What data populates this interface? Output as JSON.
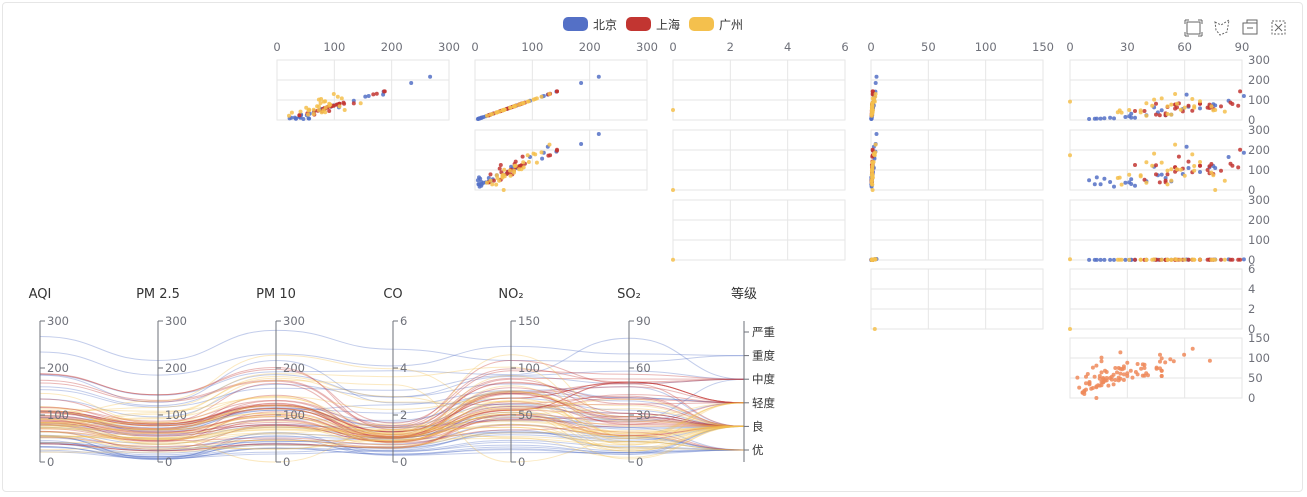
{
  "legend": {
    "items": [
      {
        "label": "北京",
        "color": "#5470c6"
      },
      {
        "label": "上海",
        "color": "#c23531"
      },
      {
        "label": "广州",
        "color": "#f4c04d"
      }
    ]
  },
  "toolbox": {
    "icons": [
      "rect-select-icon",
      "polygon-select-icon",
      "keep-selection-icon",
      "clear-selection-icon"
    ]
  },
  "colors": {
    "beijing": "#5470c6",
    "shanghai": "#c23531",
    "guangzhou": "#f4c04d",
    "extra": "#ee8a5b",
    "grid": "#e6e6e6",
    "axis": "#6e7079"
  },
  "chart_data": [
    {
      "type": "scatter",
      "title": "",
      "matrix_dimensions": [
        "AQI",
        "PM 2.5",
        "PM 10",
        "CO",
        "NO2",
        "SO2"
      ],
      "x_axes": [
        {
          "dimension": "AQI",
          "range": [
            0,
            300
          ],
          "ticks": [
            "0",
            "100",
            "200",
            "300"
          ]
        },
        {
          "dimension": "PM 2.5",
          "range": [
            0,
            300
          ],
          "ticks": [
            "0",
            "100",
            "200",
            "300"
          ]
        },
        {
          "dimension": "PM 10",
          "range": [
            0,
            6
          ],
          "ticks": [
            "0",
            "2",
            "4",
            "6"
          ]
        },
        {
          "dimension": "CO",
          "range": [
            0,
            150
          ],
          "ticks": [
            "0",
            "50",
            "100",
            "150"
          ]
        },
        {
          "dimension": "NO2",
          "range": [
            0,
            90
          ],
          "ticks": [
            "0",
            "30",
            "60",
            "90"
          ]
        }
      ],
      "y_axes": [
        {
          "dimension": "PM 2.5",
          "range": [
            0,
            300
          ],
          "ticks": [
            "0",
            "100",
            "200",
            "300"
          ]
        },
        {
          "dimension": "PM 10",
          "range": [
            0,
            300
          ],
          "ticks": [
            "0",
            "100",
            "200",
            "300"
          ]
        },
        {
          "dimension": "CO",
          "range": [
            0,
            300
          ],
          "ticks": [
            "0",
            "100",
            "200",
            "300"
          ]
        },
        {
          "dimension": "NO2",
          "range": [
            0,
            6
          ],
          "ticks": [
            "0",
            "2",
            "4",
            "6"
          ]
        },
        {
          "dimension": "SO2",
          "range": [
            0,
            150
          ],
          "ticks": [
            "0",
            "50",
            "100",
            "150"
          ]
        }
      ],
      "series": [
        {
          "name": "北京",
          "color": "#5470c6",
          "records": [
            [
              55,
              9,
              56,
              0.46,
              18,
              6
            ],
            [
              25,
              11,
              21,
              0.65,
              34,
              9
            ],
            [
              56,
              7,
              63,
              0.3,
              14,
              5
            ],
            [
              33,
              7,
              29,
              0.33,
              16,
              6
            ],
            [
              42,
              24,
              44,
              0.76,
              40,
              16
            ],
            [
              82,
              58,
              90,
              1.77,
              68,
              33
            ],
            [
              74,
              49,
              77,
              1.46,
              48,
              27
            ],
            [
              78,
              55,
              80,
              1.29,
              59,
              29
            ],
            [
              267,
              216,
              280,
              4.8,
              108,
              64
            ],
            [
              185,
              127,
              216,
              2.52,
              61,
              27
            ],
            [
              39,
              19,
              38,
              0.57,
              31,
              15
            ],
            [
              41,
              11,
              40,
              0.43,
              21,
              7
            ],
            [
              64,
              38,
              74,
              1.04,
              46,
              22
            ],
            [
              108,
              79,
              120,
              1.7,
              75,
              41
            ],
            [
              108,
              63,
              116,
              1.48,
              44,
              26
            ],
            [
              33,
              6,
              29,
              0.34,
              13,
              5
            ],
            [
              94,
              66,
              110,
              1.54,
              62,
              31
            ],
            [
              186,
              142,
              192,
              3.88,
              93,
              79
            ],
            [
              57,
              31,
              54,
              0.96,
              32,
              14
            ],
            [
              22,
              8,
              17,
              0.48,
              23,
              10
            ],
            [
              39,
              15,
              36,
              0.61,
              29,
              13
            ],
            [
              94,
              69,
              114,
              2.08,
              73,
              39
            ],
            [
              99,
              73,
              110,
              2.43,
              76,
              48
            ],
            [
              31,
              12,
              30,
              0.5,
              32,
              16
            ],
            [
              42,
              27,
              43,
              1,
              53,
              22
            ],
            [
              154,
              117,
              157,
              3.05,
              92,
              58
            ],
            [
              234,
              185,
              230,
              4.09,
              123,
              69
            ],
            [
              160,
              120,
              186,
              2.77,
              91,
              50
            ],
            [
              134,
              96,
              165,
              2.76,
              83,
              41
            ],
            [
              52,
              24,
              60,
              1.03,
              50,
              21
            ],
            [
              46,
              5,
              49,
              0.28,
              10,
              6
            ]
          ]
        },
        {
          "name": "上海",
          "color": "#c23531",
          "records": [
            [
              91,
              45,
              125,
              0.82,
              34,
              23
            ],
            [
              65,
              27,
              78,
              0.86,
              45,
              29
            ],
            [
              83,
              60,
              84,
              1.09,
              73,
              27
            ],
            [
              109,
              81,
              121,
              1.28,
              68,
              51
            ],
            [
              106,
              77,
              114,
              1.07,
              55,
              51
            ],
            [
              109,
              81,
              121,
              1.28,
              68,
              51
            ],
            [
              106,
              77,
              114,
              1.07,
              55,
              51
            ],
            [
              89,
              65,
              78,
              0.86,
              51,
              26
            ],
            [
              53,
              33,
              47,
              0.64,
              50,
              17
            ],
            [
              80,
              55,
              80,
              1.01,
              75,
              24
            ],
            [
              117,
              81,
              124,
              1.03,
              45,
              24
            ],
            [
              99,
              71,
              142,
              1.1,
              62,
              42
            ],
            [
              95,
              69,
              130,
              1.28,
              74,
              50
            ],
            [
              116,
              87,
              131,
              1.47,
              84,
              40
            ],
            [
              108,
              80,
              121,
              1.3,
              85,
              37
            ],
            [
              134,
              83,
              167,
              1.16,
              57,
              43
            ],
            [
              79,
              43,
              107,
              1.05,
              59,
              37
            ],
            [
              71,
              46,
              89,
              0.86,
              64,
              25
            ],
            [
              97,
              71,
              113,
              1.17,
              88,
              31
            ],
            [
              84,
              57,
              91,
              0.85,
              55,
              31
            ],
            [
              87,
              63,
              101,
              0.9,
              56,
              41
            ],
            [
              104,
              77,
              119,
              1.09,
              73,
              48
            ],
            [
              87,
              62,
              100,
              1,
              72,
              28
            ],
            [
              168,
              128,
              172,
              1.49,
              97,
              56
            ],
            [
              65,
              45,
              51,
              0.74,
              39,
              17
            ],
            [
              39,
              24,
              38,
              0.61,
              47,
              17
            ],
            [
              39,
              24,
              39,
              0.59,
              50,
              19
            ],
            [
              93,
              68,
              96,
              1.05,
              79,
              29
            ],
            [
              188,
              143,
              197,
              1.66,
              99,
              51
            ],
            [
              174,
              131,
              174,
              1.55,
              108,
              50
            ],
            [
              187,
              143,
              201,
              1.39,
              89,
              53
            ]
          ]
        },
        {
          "name": "广州",
          "color": "#f4c04d",
          "records": [
            [
              26,
              37,
              27,
              1.163,
              27,
              13
            ],
            [
              85,
              62,
              71,
              1.195,
              60,
              8
            ],
            [
              78,
              38,
              74,
              1.363,
              37,
              7
            ],
            [
              21,
              21,
              36,
              0.634,
              40,
              9
            ],
            [
              41,
              42,
              46,
              0.915,
              81,
              13
            ],
            [
              56,
              52,
              69,
              1.067,
              92,
              16
            ],
            [
              64,
              30,
              28,
              0.924,
              51,
              2
            ],
            [
              55,
              48,
              74,
              1.236,
              75,
              26
            ],
            [
              76,
              85,
              113,
              1.237,
              114,
              27
            ],
            [
              91,
              81,
              104,
              1.041,
              56,
              40
            ],
            [
              84,
              39,
              60,
              0.964,
              25,
              11
            ],
            [
              64,
              51,
              101,
              0.862,
              58,
              23
            ],
            [
              70,
              69,
              120,
              1.198,
              65,
              36
            ],
            [
              77,
              105,
              178,
              2.549,
              64,
              16
            ],
            [
              109,
              68,
              87,
              0.996,
              74,
              29
            ],
            [
              73,
              68,
              97,
              0.905,
              51,
              34
            ],
            [
              54,
              27,
              47,
              0.592,
              53,
              12
            ],
            [
              51,
              61,
              97,
              0.811,
              65,
              19
            ],
            [
              91,
              71,
              121,
              1.374,
              43,
              18
            ],
            [
              73,
              102,
              182,
              2.787,
              44,
              19
            ],
            [
              73,
              50,
              76,
              0.717,
              31,
              20
            ],
            [
              84,
              94,
              140,
              2.238,
              68,
              18
            ],
            [
              93,
              77,
              104,
              1.165,
              53,
              7
            ],
            [
              99,
              130,
              227,
              3.97,
              55,
              15
            ],
            [
              146,
              84,
              139,
              1.094,
              40,
              17
            ],
            [
              113,
              108,
              137,
              1.481,
              48,
              15
            ],
            [
              81,
              48,
              62,
              1.619,
              26,
              3
            ],
            [
              56,
              48,
              68,
              1.336,
              37,
              9
            ],
            [
              82,
              92,
              174,
              3.29,
              0,
              13
            ],
            [
              106,
              116,
              188,
              3.628,
              101,
              16
            ],
            [
              118,
              50,
              0,
              1.383,
              76,
              11
            ]
          ]
        }
      ],
      "extra_panel": {
        "x_dimension": "NO2",
        "y_dimension": "SO2",
        "color": "#ee8a5b",
        "x_range": [
          0,
          90
        ],
        "y_range": [
          0,
          150
        ],
        "ticks": [
          "0",
          "50",
          "100",
          "150"
        ]
      }
    },
    {
      "type": "parallel",
      "title": "",
      "axes": [
        {
          "name": "AQI",
          "range": [
            0,
            300
          ],
          "ticks": [
            "0",
            "100",
            "200",
            "300"
          ]
        },
        {
          "name": "PM 2.5",
          "range": [
            0,
            300
          ],
          "ticks": [
            "0",
            "100",
            "200",
            "300"
          ]
        },
        {
          "name": "PM 10",
          "range": [
            0,
            300
          ],
          "ticks": [
            "0",
            "100",
            "200",
            "300"
          ]
        },
        {
          "name": "CO",
          "range": [
            0,
            6
          ],
          "ticks": [
            "0",
            "2",
            "4",
            "6"
          ]
        },
        {
          "name": "NO₂",
          "range": [
            0,
            150
          ],
          "ticks": [
            "0",
            "50",
            "100",
            "150"
          ]
        },
        {
          "name": "SO₂",
          "range": [
            0,
            90
          ],
          "ticks": [
            "0",
            "30",
            "60",
            "90"
          ]
        },
        {
          "name": "等级",
          "categories": [
            "优",
            "良",
            "轻度",
            "中度",
            "重度",
            "严重"
          ]
        }
      ],
      "lines": "same records as scatter series, level derived from AQI"
    }
  ]
}
